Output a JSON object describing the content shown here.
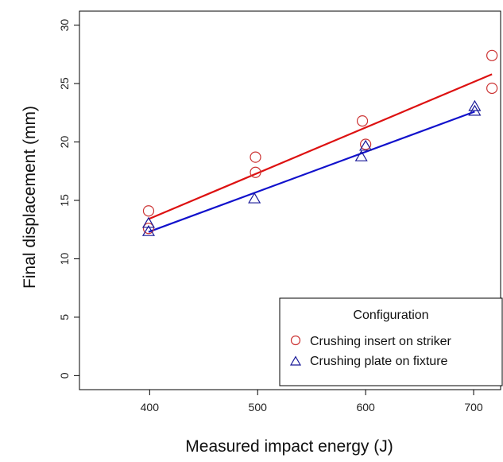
{
  "chart_data": {
    "type": "scatter",
    "title": "",
    "xlabel": "Measured impact energy (J)",
    "ylabel": "Final displacement (mm)",
    "xlim": [
      335,
      725
    ],
    "ylim": [
      -1.2,
      31.2
    ],
    "xticks": [
      "400",
      "500",
      "600",
      "700"
    ],
    "yticks": [
      "0",
      "5",
      "10",
      "15",
      "20",
      "25",
      "30"
    ],
    "grid": false,
    "legend": {
      "title": "Configuration",
      "position": "bottom-right",
      "entries": [
        "Crushing insert on striker",
        "Crushing plate on fixture"
      ]
    },
    "series": [
      {
        "name": "Crushing insert on striker",
        "marker": "circle",
        "color": "#cc3333",
        "line_color": "#dd1111",
        "x": [
          399,
          399,
          498,
          498,
          597,
          600,
          717,
          717
        ],
        "y": [
          12.6,
          14.1,
          17.4,
          18.7,
          21.8,
          19.8,
          27.4,
          24.6
        ],
        "fit": {
          "x": [
            399,
            717
          ],
          "y": [
            13.4,
            25.8
          ]
        }
      },
      {
        "name": "Crushing plate on fixture",
        "marker": "triangle",
        "color": "#1a1a99",
        "line_color": "#1111cc",
        "x": [
          399,
          399,
          497,
          596,
          600,
          701,
          701
        ],
        "y": [
          12.4,
          13.1,
          15.2,
          18.8,
          19.7,
          22.7,
          23.1
        ],
        "fit": {
          "x": [
            399,
            701
          ],
          "y": [
            12.3,
            22.6
          ]
        }
      }
    ]
  }
}
